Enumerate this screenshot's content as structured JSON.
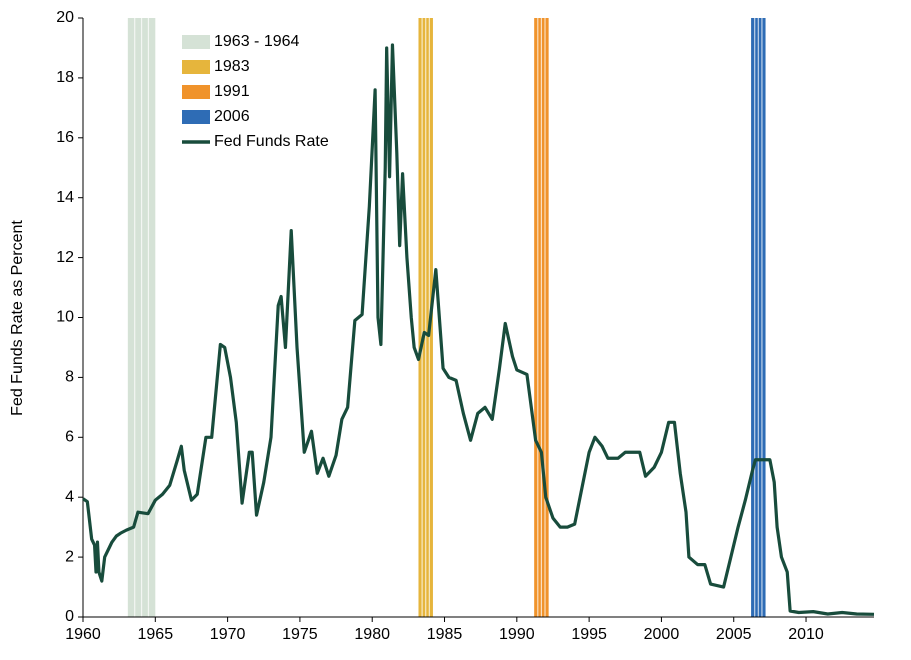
{
  "chart_data": {
    "type": "line",
    "ylabel": "Fed Funds Rate as Percent",
    "xlim": [
      1960,
      2014.7
    ],
    "xticks": [
      1960,
      1965,
      1970,
      1975,
      1980,
      1985,
      1990,
      1995,
      2000,
      2005,
      2010
    ],
    "ylim": [
      0,
      20
    ],
    "yticks": [
      0,
      2,
      4,
      6,
      8,
      10,
      12,
      14,
      16,
      18,
      20
    ],
    "legend": "upper-left",
    "bands": [
      {
        "name": "1963 - 1964",
        "color": "#d5e2d6",
        "start": 1963.1,
        "end": 1965.0
      },
      {
        "name": "1983",
        "color": "#e6b53c",
        "start": 1983.2,
        "end": 1984.2
      },
      {
        "name": "1991",
        "color": "#f0932b",
        "start": 1991.2,
        "end": 1992.2
      },
      {
        "name": "2006",
        "color": "#2e6cb5",
        "start": 2006.2,
        "end": 2007.2
      }
    ],
    "series": [
      {
        "name": "Fed Funds Rate",
        "color": "#184c3c",
        "x": [
          1960.0,
          1960.3,
          1960.6,
          1960.8,
          1960.9,
          1961.0,
          1961.1,
          1961.3,
          1961.5,
          1961.8,
          1962.0,
          1962.3,
          1962.6,
          1963.0,
          1963.5,
          1963.8,
          1964.5,
          1965.0,
          1965.5,
          1966.0,
          1966.5,
          1966.8,
          1967.0,
          1967.5,
          1967.9,
          1968.5,
          1968.9,
          1969.5,
          1969.8,
          1970.2,
          1970.6,
          1971.0,
          1971.5,
          1971.7,
          1972.0,
          1972.5,
          1973.0,
          1973.5,
          1973.7,
          1974.0,
          1974.4,
          1974.8,
          1975.3,
          1975.8,
          1976.2,
          1976.6,
          1977.0,
          1977.5,
          1977.9,
          1978.3,
          1978.8,
          1979.3,
          1979.8,
          1980.2,
          1980.4,
          1980.6,
          1980.9,
          1981.0,
          1981.2,
          1981.4,
          1981.7,
          1981.9,
          1982.1,
          1982.4,
          1982.7,
          1982.9,
          1983.2,
          1983.6,
          1983.9,
          1984.4,
          1984.9,
          1985.3,
          1985.8,
          1986.3,
          1986.8,
          1987.3,
          1987.8,
          1988.3,
          1988.8,
          1989.2,
          1989.7,
          1990.0,
          1990.7,
          1991.0,
          1991.3,
          1991.7,
          1992.0,
          1992.5,
          1993.0,
          1993.5,
          1994.0,
          1994.5,
          1995.0,
          1995.4,
          1995.9,
          1996.3,
          1997.0,
          1997.5,
          1998.5,
          1998.9,
          1999.5,
          2000.0,
          2000.5,
          2000.9,
          2001.3,
          2001.7,
          2001.9,
          2002.5,
          2003.0,
          2003.4,
          2004.3,
          2004.8,
          2005.3,
          2005.8,
          2006.3,
          2006.5,
          2007.5,
          2007.8,
          2008.0,
          2008.3,
          2008.7,
          2008.9,
          2009.5,
          2010.5,
          2011.5,
          2012.5,
          2013.5,
          2014.7
        ],
        "values": [
          3.95,
          3.85,
          2.6,
          2.4,
          1.5,
          2.5,
          1.5,
          1.2,
          2.0,
          2.3,
          2.5,
          2.7,
          2.8,
          2.9,
          3.0,
          3.5,
          3.45,
          3.9,
          4.1,
          4.4,
          5.2,
          5.7,
          4.9,
          3.9,
          4.1,
          6.0,
          6.0,
          9.1,
          9.0,
          8.0,
          6.5,
          3.8,
          5.5,
          5.5,
          3.4,
          4.5,
          6.0,
          10.4,
          10.7,
          9.0,
          12.9,
          9.0,
          5.5,
          6.2,
          4.8,
          5.3,
          4.7,
          5.4,
          6.6,
          7.0,
          9.9,
          10.1,
          13.7,
          17.6,
          10.0,
          9.1,
          15.0,
          19.0,
          14.7,
          19.1,
          15.5,
          12.4,
          14.8,
          12.0,
          10.0,
          9.0,
          8.6,
          9.5,
          9.4,
          11.6,
          8.3,
          8.0,
          7.9,
          6.8,
          5.9,
          6.8,
          7.0,
          6.6,
          8.3,
          9.8,
          8.7,
          8.25,
          8.1,
          7.0,
          5.9,
          5.5,
          4.0,
          3.3,
          3.0,
          3.0,
          3.1,
          4.3,
          5.5,
          6.0,
          5.7,
          5.3,
          5.3,
          5.5,
          5.5,
          4.7,
          5.0,
          5.5,
          6.5,
          6.5,
          4.8,
          3.5,
          2.0,
          1.75,
          1.75,
          1.1,
          1.0,
          2.0,
          3.0,
          3.9,
          4.9,
          5.25,
          5.25,
          4.5,
          3.0,
          2.0,
          1.5,
          0.2,
          0.15,
          0.18,
          0.1,
          0.15,
          0.1,
          0.09
        ]
      }
    ]
  }
}
